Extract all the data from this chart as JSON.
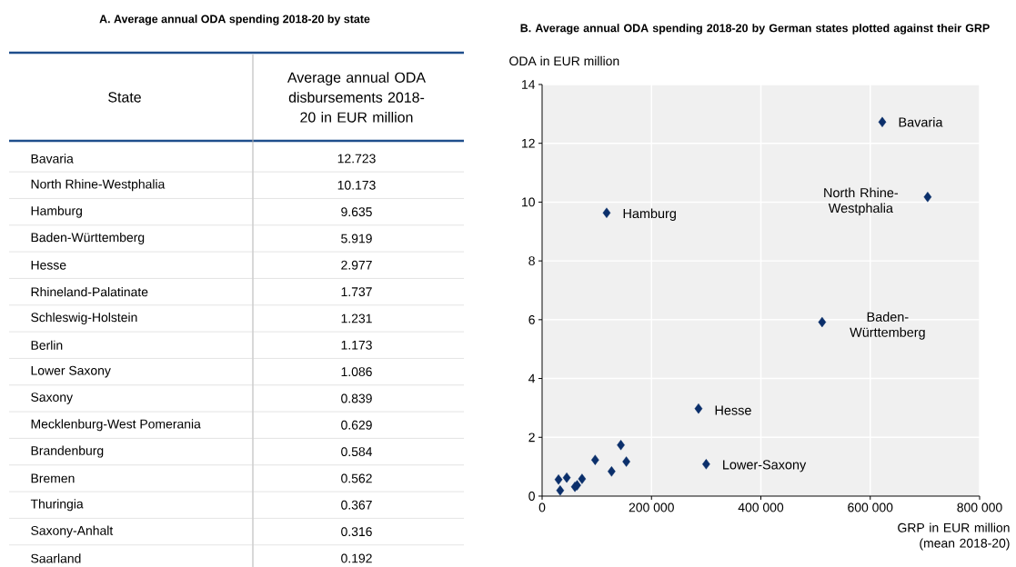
{
  "chart_data": [
    {
      "type": "other",
      "title": "A. Average annual ODA spending 2018-20 by state",
      "annotations": [
        "State",
        "Average annual ODA disbursements 2018-20 in EUR million"
      ],
      "categories": [
        "Bavaria",
        "North Rhine-Westphalia",
        "Hamburg",
        "Baden-Württemberg",
        "Hesse",
        "Rhineland-Palatinate",
        "Schleswig-Holstein",
        "Berlin",
        "Lower Saxony",
        "Saxony",
        "Mecklenburg-West Pomerania",
        "Brandenburg",
        "Bremen",
        "Thuringia",
        "Saxony-Anhalt",
        "Saarland"
      ],
      "values": [
        12.723,
        10.173,
        9.635,
        5.919,
        2.977,
        1.737,
        1.231,
        1.173,
        1.086,
        0.839,
        0.629,
        0.584,
        0.562,
        0.367,
        0.316,
        0.192
      ],
      "data_labels": true
    },
    {
      "type": "scatter",
      "title": "B. Average annual ODA spending 2018-20 by German states plotted against their GRP",
      "xlabel": "GRP in EUR million (mean 2018-20)",
      "ylabel": "ODA in EUR million",
      "x": [
        622000,
        705000,
        118000,
        512000,
        286000,
        144000,
        97000,
        154000,
        300000,
        127000,
        45000,
        73000,
        30000,
        64000,
        60000,
        33000
      ],
      "values": [
        12.723,
        10.173,
        9.635,
        5.919,
        2.977,
        1.737,
        1.231,
        1.173,
        1.086,
        0.839,
        0.629,
        0.584,
        0.562,
        0.367,
        0.316,
        0.192
      ],
      "color": "#0b2f6b",
      "marker": "diamond",
      "grid": true,
      "xlim": [
        0,
        800000
      ],
      "ylim": [
        0,
        14
      ],
      "xticks": [
        0,
        {
          "value": 200000,
          "label": "200 000"
        },
        {
          "value": 400000,
          "label": "400 000"
        },
        {
          "value": 600000,
          "label": "600 000"
        },
        {
          "value": 800000,
          "label": "800 000"
        }
      ],
      "yticks": [
        0,
        2,
        4,
        6,
        8,
        10,
        12,
        14
      ],
      "annotations": [
        {
          "text": "Bavaria",
          "x": 622000,
          "y": 12.723
        },
        {
          "text": "North Rhine-Westphalia",
          "x": 705000,
          "y": 10.173
        },
        {
          "text": "Hamburg",
          "x": 118000,
          "y": 9.635
        },
        {
          "text": "Baden-Württemberg",
          "x": 512000,
          "y": 5.919
        },
        {
          "text": "Hesse",
          "x": 286000,
          "y": 2.977
        },
        {
          "text": "Lower-Saxony",
          "x": 300000,
          "y": 1.086
        }
      ]
    }
  ]
}
